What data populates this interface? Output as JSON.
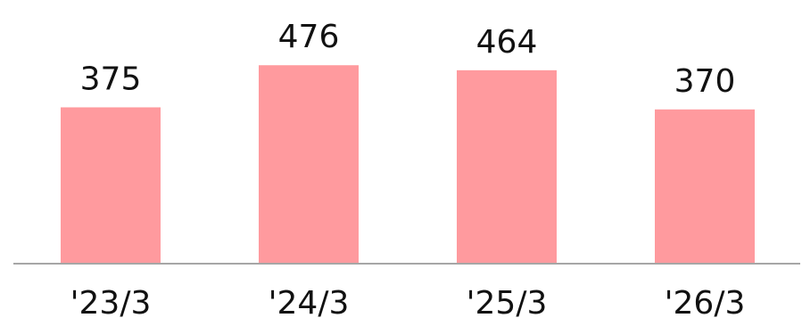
{
  "chart_data": {
    "type": "bar",
    "categories": [
      "'23/3",
      "'24/3",
      "'25/3",
      "'26/3"
    ],
    "values": [
      375,
      476,
      464,
      370
    ],
    "title": "",
    "xlabel": "",
    "ylabel": "",
    "ylim": [
      0,
      500
    ],
    "grid": false,
    "legend": "none",
    "bar_color": "#ff9a9e",
    "axis_color": "#a6a6a6",
    "show_data_labels": true
  }
}
